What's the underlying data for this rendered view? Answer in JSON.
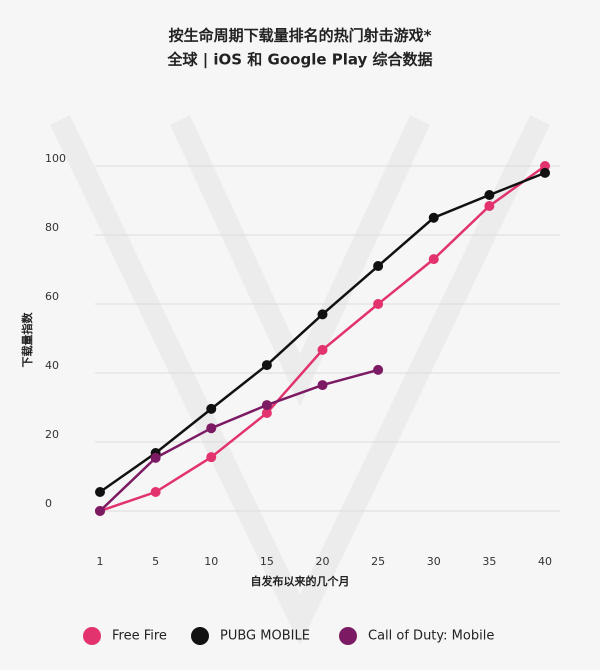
{
  "chart_data": {
    "type": "line",
    "title": "按生命周期下载量排名的热门射击游戏*",
    "subtitle": "全球 | iOS 和 Google Play 综合数据",
    "x_label": "自发布以来的几个月",
    "y_label": "下载量指数",
    "categories": [
      "1",
      "5",
      "10",
      "15",
      "20",
      "25",
      "30",
      "35",
      "40"
    ],
    "series": [
      {
        "name": "Free Fire",
        "color": "#e2336f",
        "values": [
          0,
          5.5,
          15.6,
          28.4,
          46.7,
          60,
          73,
          88.4,
          100
        ]
      },
      {
        "name": "PUBG MOBILE",
        "color": "#111111",
        "values": [
          5.5,
          16.8,
          29.6,
          42.3,
          57,
          71,
          85,
          91.6,
          98
        ]
      },
      {
        "name": "Call of Duty: Mobile",
        "color": "#7c1a63",
        "values": [
          0,
          15.4,
          24,
          30.7,
          36.5,
          40.9,
          null,
          null,
          null
        ]
      }
    ],
    "ylim": [
      0,
      100
    ],
    "yticks": [
      0,
      20,
      40,
      60,
      80,
      100
    ],
    "grid": true,
    "legend": "bottom"
  }
}
